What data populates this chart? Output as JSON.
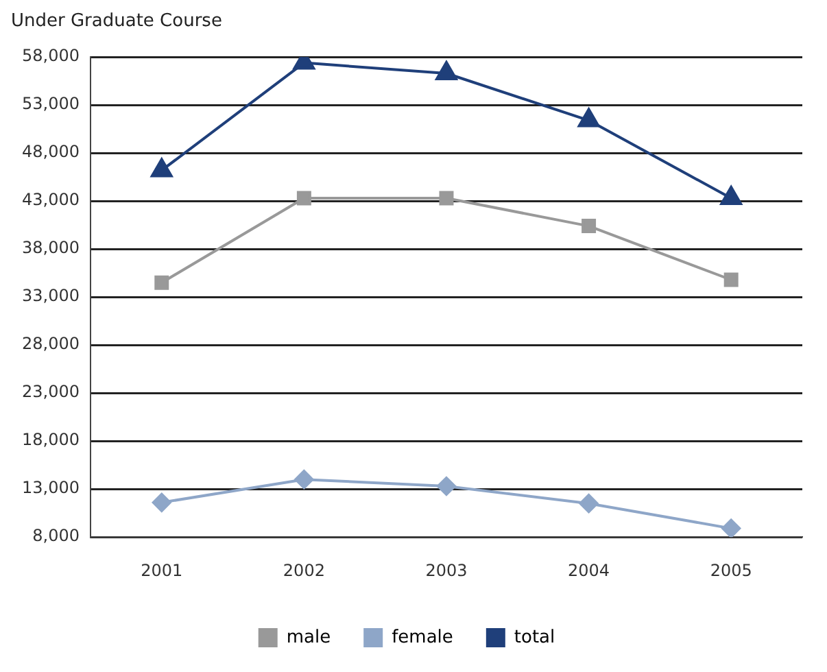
{
  "chart_data": {
    "type": "line",
    "title": "Under Graduate Course",
    "categories": [
      "2001",
      "2002",
      "2003",
      "2004",
      "2005"
    ],
    "series": [
      {
        "name": "male",
        "color": "#999999",
        "marker": "square",
        "values": [
          34500,
          43300,
          43300,
          40400,
          34800
        ]
      },
      {
        "name": "female",
        "color": "#8ea6c8",
        "marker": "diamond",
        "values": [
          11600,
          14000,
          13300,
          11500,
          8900
        ]
      },
      {
        "name": "total",
        "color": "#1f3f7a",
        "marker": "triangle",
        "values": [
          46200,
          57400,
          56300,
          51400,
          43300
        ]
      }
    ],
    "ylim": [
      8000,
      58000
    ],
    "yticks": [
      {
        "value": 8000,
        "label": "8,000"
      },
      {
        "value": 13000,
        "label": "13,000"
      },
      {
        "value": 18000,
        "label": "18,000"
      },
      {
        "value": 23000,
        "label": "23,000"
      },
      {
        "value": 28000,
        "label": "28,000"
      },
      {
        "value": 33000,
        "label": "33,000"
      },
      {
        "value": 38000,
        "label": "38,000"
      },
      {
        "value": 43000,
        "label": "43,000"
      },
      {
        "value": 48000,
        "label": "48,000"
      },
      {
        "value": 53000,
        "label": "53,000"
      },
      {
        "value": 58000,
        "label": "58,000"
      }
    ],
    "grid": "y",
    "legend": "bottom"
  }
}
